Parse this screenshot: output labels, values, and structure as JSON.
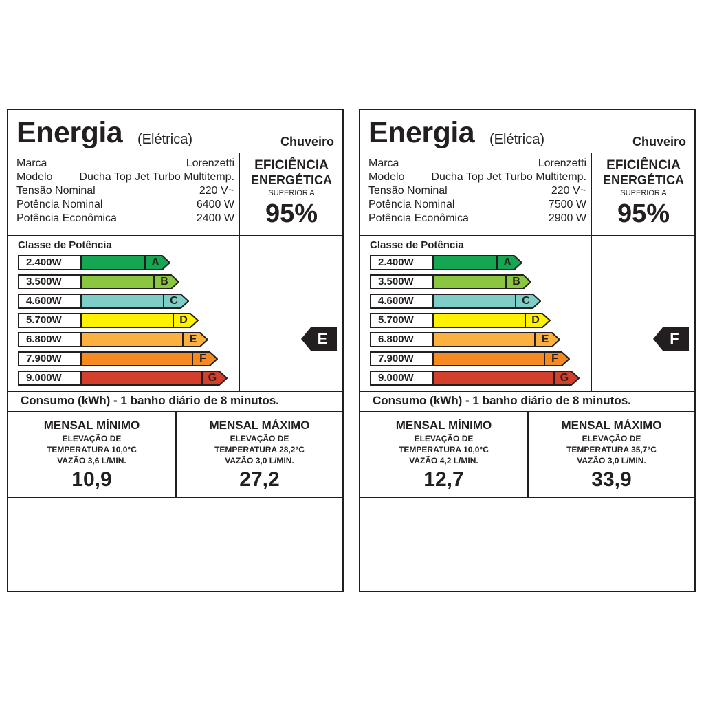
{
  "labels": [
    {
      "title": "Energia",
      "subtitle": "(Elétrica)",
      "product": "Chuveiro",
      "specs": [
        {
          "key": "Marca",
          "value": "Lorenzetti"
        },
        {
          "key": "Modelo",
          "value": "Ducha Top Jet Turbo Multitemp."
        },
        {
          "key": "Tensão Nominal",
          "value": "220 V~"
        },
        {
          "key": "Potência Nominal",
          "value": "6400 W"
        },
        {
          "key": "Potência Econômica",
          "value": "2400 W"
        }
      ],
      "efficiency": {
        "line1": "EFICIÊNCIA",
        "line2": "ENERGÉTICA",
        "line3": "SUPERIOR A",
        "value": "95%"
      },
      "classes_title": "Classe de Potência",
      "classes": [
        {
          "power": "2.400W",
          "letter": "A",
          "color": "#14a651"
        },
        {
          "power": "3.500W",
          "letter": "B",
          "color": "#8bc640"
        },
        {
          "power": "4.600W",
          "letter": "C",
          "color": "#7dcec6"
        },
        {
          "power": "5.700W",
          "letter": "D",
          "color": "#fff200"
        },
        {
          "power": "6.800W",
          "letter": "E",
          "color": "#fbb040"
        },
        {
          "power": "7.900W",
          "letter": "F",
          "color": "#f6891f"
        },
        {
          "power": "9.000W",
          "letter": "G",
          "color": "#d2402b"
        }
      ],
      "rating": "E",
      "consumo": "Consumo (kWh) - 1 banho diário de 8 minutos.",
      "min": {
        "title": "MENSAL MÍNIMO",
        "line1": "ELEVAÇÃO DE",
        "line2": "TEMPERATURA 10,0°C",
        "line3": "VAZÃO 3,6 L/MIN.",
        "value": "10,9"
      },
      "max": {
        "title": "MENSAL MÁXIMO",
        "line1": "ELEVAÇÃO DE",
        "line2": "TEMPERATURA 28,2°C",
        "line3": "VAZÃO 3,0 L/MIN.",
        "value": "27,2"
      }
    },
    {
      "title": "Energia",
      "subtitle": "(Elétrica)",
      "product": "Chuveiro",
      "specs": [
        {
          "key": "Marca",
          "value": "Lorenzetti"
        },
        {
          "key": "Modelo",
          "value": "Ducha Top Jet Turbo Multitemp."
        },
        {
          "key": "Tensão Nominal",
          "value": "220 V~"
        },
        {
          "key": "Potência Nominal",
          "value": "7500 W"
        },
        {
          "key": "Potência Econômica",
          "value": "2900 W"
        }
      ],
      "efficiency": {
        "line1": "EFICIÊNCIA",
        "line2": "ENERGÉTICA",
        "line3": "SUPERIOR A",
        "value": "95%"
      },
      "classes_title": "Classe de Potência",
      "classes": [
        {
          "power": "2.400W",
          "letter": "A",
          "color": "#14a651"
        },
        {
          "power": "3.500W",
          "letter": "B",
          "color": "#8bc640"
        },
        {
          "power": "4.600W",
          "letter": "C",
          "color": "#7dcec6"
        },
        {
          "power": "5.700W",
          "letter": "D",
          "color": "#fff200"
        },
        {
          "power": "6.800W",
          "letter": "E",
          "color": "#fbb040"
        },
        {
          "power": "7.900W",
          "letter": "F",
          "color": "#f6891f"
        },
        {
          "power": "9.000W",
          "letter": "G",
          "color": "#d2402b"
        }
      ],
      "rating": "F",
      "consumo": "Consumo (kWh) - 1 banho diário de 8 minutos.",
      "min": {
        "title": "MENSAL MÍNIMO",
        "line1": "ELEVAÇÃO DE",
        "line2": "TEMPERATURA 10,0°C",
        "line3": "VAZÃO 4,2 L/MIN.",
        "value": "12,7"
      },
      "max": {
        "title": "MENSAL MÁXIMO",
        "line1": "ELEVAÇÃO DE",
        "line2": "TEMPERATURA 35,7°C",
        "line3": "VAZÃO 3,0 L/MIN.",
        "value": "33,9"
      }
    }
  ]
}
